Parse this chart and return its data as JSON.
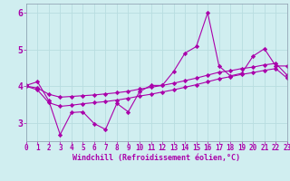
{
  "xlabel": "Windchill (Refroidissement éolien,°C)",
  "bg_color": "#d0eef0",
  "line_color": "#aa00aa",
  "grid_color": "#b8dde0",
  "x_values": [
    0,
    1,
    2,
    3,
    4,
    5,
    6,
    7,
    8,
    9,
    10,
    11,
    12,
    13,
    14,
    15,
    16,
    17,
    18,
    19,
    20,
    21,
    22,
    23
  ],
  "line1": [
    4.02,
    4.12,
    3.6,
    2.68,
    3.28,
    3.3,
    2.98,
    2.82,
    3.53,
    3.3,
    3.85,
    4.02,
    4.02,
    4.4,
    4.9,
    5.08,
    6.0,
    4.55,
    4.28,
    4.35,
    4.82,
    5.02,
    4.55,
    4.55
  ],
  "line2": [
    4.0,
    3.95,
    3.78,
    3.7,
    3.72,
    3.74,
    3.76,
    3.79,
    3.82,
    3.86,
    3.92,
    3.97,
    4.02,
    4.08,
    4.15,
    4.22,
    4.3,
    4.38,
    4.42,
    4.48,
    4.52,
    4.58,
    4.62,
    4.3
  ],
  "line3": [
    4.0,
    3.9,
    3.55,
    3.45,
    3.48,
    3.52,
    3.55,
    3.58,
    3.62,
    3.67,
    3.73,
    3.78,
    3.84,
    3.9,
    3.97,
    4.04,
    4.12,
    4.2,
    4.26,
    4.32,
    4.37,
    4.43,
    4.48,
    4.22
  ],
  "ylim": [
    2.5,
    6.25
  ],
  "xlim": [
    0,
    23
  ],
  "yticks": [
    3,
    4,
    5,
    6
  ],
  "xticks": [
    0,
    1,
    2,
    3,
    4,
    5,
    6,
    7,
    8,
    9,
    10,
    11,
    12,
    13,
    14,
    15,
    16,
    17,
    18,
    19,
    20,
    21,
    22,
    23
  ],
  "marker": "D",
  "markersize": 2.2,
  "linewidth": 0.8,
  "tick_fontsize": 5.5,
  "xlabel_fontsize": 6.0
}
